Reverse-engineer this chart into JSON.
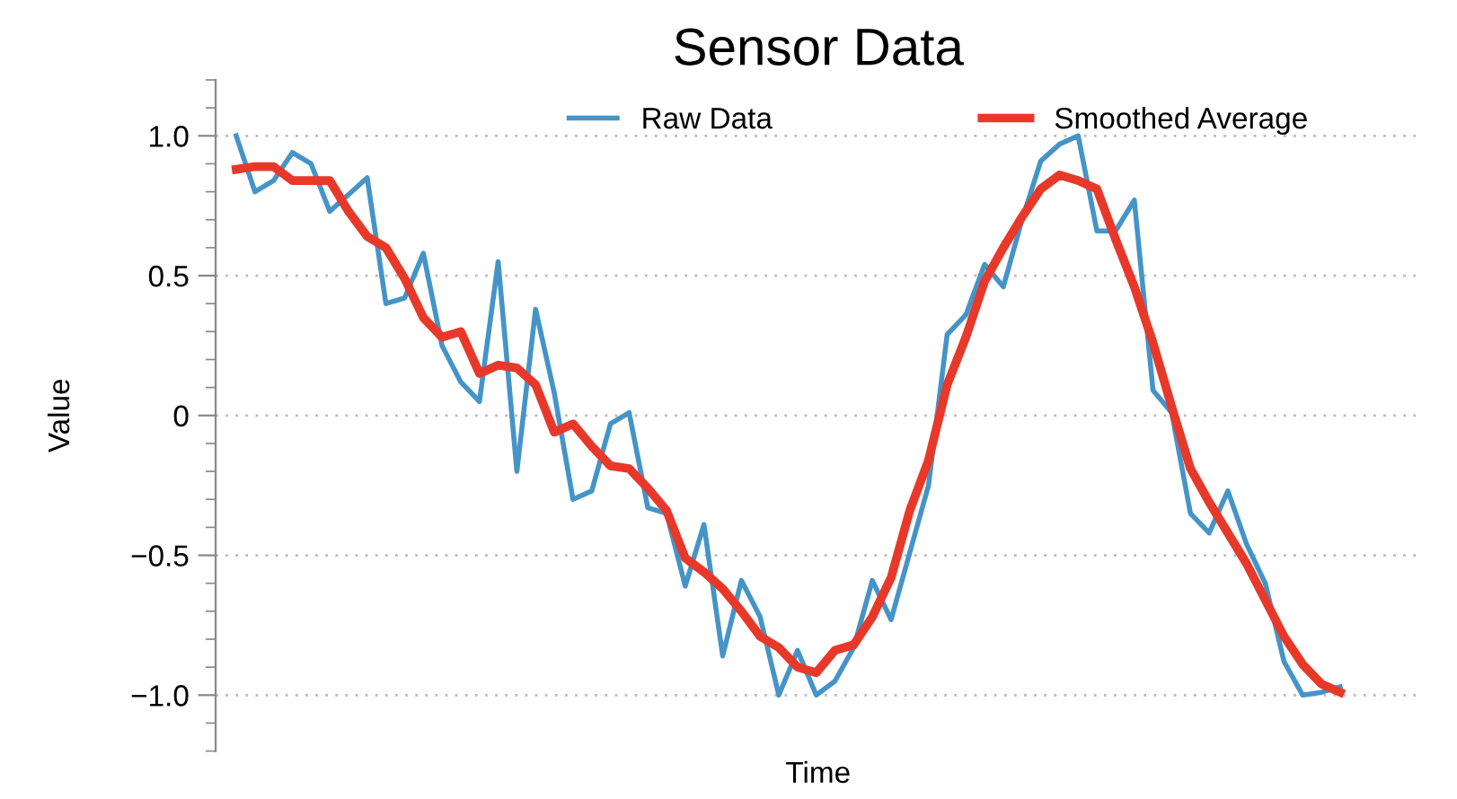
{
  "chart_data": {
    "type": "line",
    "title": "Sensor Data",
    "xlabel": "Time",
    "ylabel": "Value",
    "categories": [
      null,
      null,
      null,
      null,
      null,
      null,
      null,
      null,
      null,
      null,
      null,
      null,
      null,
      null,
      null,
      null,
      null,
      null,
      null,
      null,
      null,
      null,
      null,
      null,
      null,
      null,
      null,
      null,
      null,
      null,
      null,
      null,
      null,
      null,
      null,
      null,
      null,
      null,
      null,
      null,
      null,
      null,
      null,
      null,
      null,
      null,
      null,
      null,
      null,
      null,
      null,
      null,
      null,
      null,
      null,
      null,
      null,
      null,
      null,
      null
    ],
    "series": [
      {
        "name": "Raw Data",
        "color": "#4494c8",
        "values": [
          1.0,
          0.8,
          0.84,
          0.94,
          0.9,
          0.73,
          0.79,
          0.85,
          0.4,
          0.42,
          0.58,
          0.25,
          0.12,
          0.05,
          0.55,
          -0.2,
          0.38,
          0.08,
          -0.3,
          -0.27,
          -0.03,
          0.01,
          -0.33,
          -0.35,
          -0.61,
          -0.39,
          -0.86,
          -0.59,
          -0.72,
          -1.0,
          -0.84,
          -1.0,
          -0.95,
          -0.83,
          -0.59,
          -0.73,
          -0.49,
          -0.25,
          0.29,
          0.36,
          0.54,
          0.46,
          0.7,
          0.91,
          0.97,
          1.0,
          0.66,
          0.66,
          0.77,
          0.09,
          0.01,
          -0.35,
          -0.42,
          -0.27,
          -0.46,
          -0.6,
          -0.88,
          -1.0,
          -0.99,
          -0.97
        ]
      },
      {
        "name": "Smoothed Average",
        "color": "#e8382a",
        "values": [
          0.88,
          0.89,
          0.89,
          0.84,
          0.84,
          0.84,
          0.73,
          0.64,
          0.6,
          0.49,
          0.35,
          0.28,
          0.3,
          0.15,
          0.18,
          0.17,
          0.11,
          -0.06,
          -0.03,
          -0.11,
          -0.18,
          -0.19,
          -0.26,
          -0.34,
          -0.51,
          -0.56,
          -0.62,
          -0.7,
          -0.79,
          -0.83,
          -0.9,
          -0.92,
          -0.84,
          -0.82,
          -0.72,
          -0.58,
          -0.34,
          -0.16,
          0.11,
          0.28,
          0.48,
          0.6,
          0.71,
          0.81,
          0.86,
          0.84,
          0.81,
          0.63,
          0.46,
          0.26,
          0.03,
          -0.19,
          -0.31,
          -0.42,
          -0.53,
          -0.66,
          -0.79,
          -0.89,
          -0.96,
          -0.99
        ]
      }
    ],
    "ylim": [
      -1.2,
      1.2
    ],
    "yticks": [
      {
        "value": -1.0,
        "label": "−1.0"
      },
      {
        "value": -0.5,
        "label": "−0.5"
      },
      {
        "value": 0,
        "label": "0"
      },
      {
        "value": 0.5,
        "label": "0.5"
      },
      {
        "value": 1.0,
        "label": "1.0"
      }
    ],
    "tick_labels": "y",
    "grid": "y",
    "legend": "top",
    "line_style": "solid",
    "marker": "none"
  }
}
